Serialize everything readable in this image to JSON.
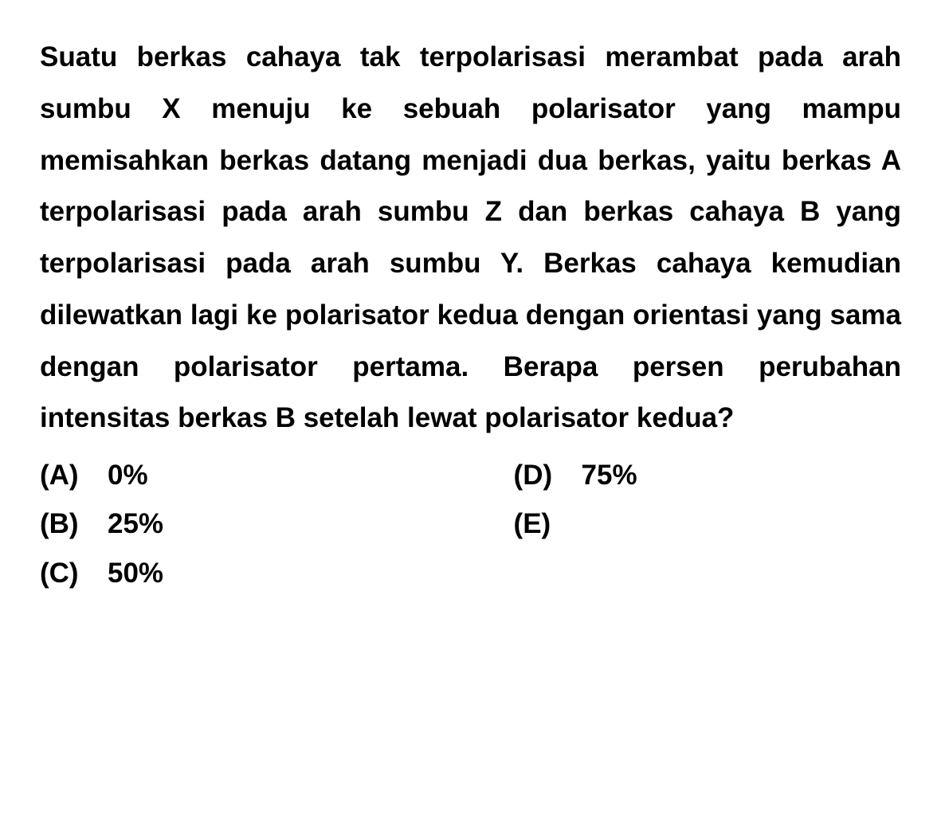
{
  "question": {
    "text": "Suatu berkas cahaya tak terpolarisasi merambat pada arah sumbu X menuju ke sebuah polarisator yang mampu memisahkan berkas datang menjadi dua berkas, yaitu berkas A terpolarisasi pada arah sumbu Z dan berkas cahaya B yang terpolarisasi pada arah sumbu Y. Berkas cahaya kemudian dilewatkan lagi ke polarisator kedua dengan orientasi yang sama dengan polarisator pertama. Berapa persen perubahan intensitas berkas B setelah lewat polarisator kedua?",
    "text_color": "#000000",
    "background_color": "#ffffff",
    "font_size": 35,
    "font_weight": "bold",
    "line_height": 1.85
  },
  "options": {
    "a": {
      "label": "(A)",
      "value": "0%"
    },
    "b": {
      "label": "(B)",
      "value": "25%"
    },
    "c": {
      "label": "(C)",
      "value": "50%"
    },
    "d": {
      "label": "(D)",
      "value": "75%"
    },
    "e": {
      "label": "(E)",
      "value": ""
    }
  }
}
